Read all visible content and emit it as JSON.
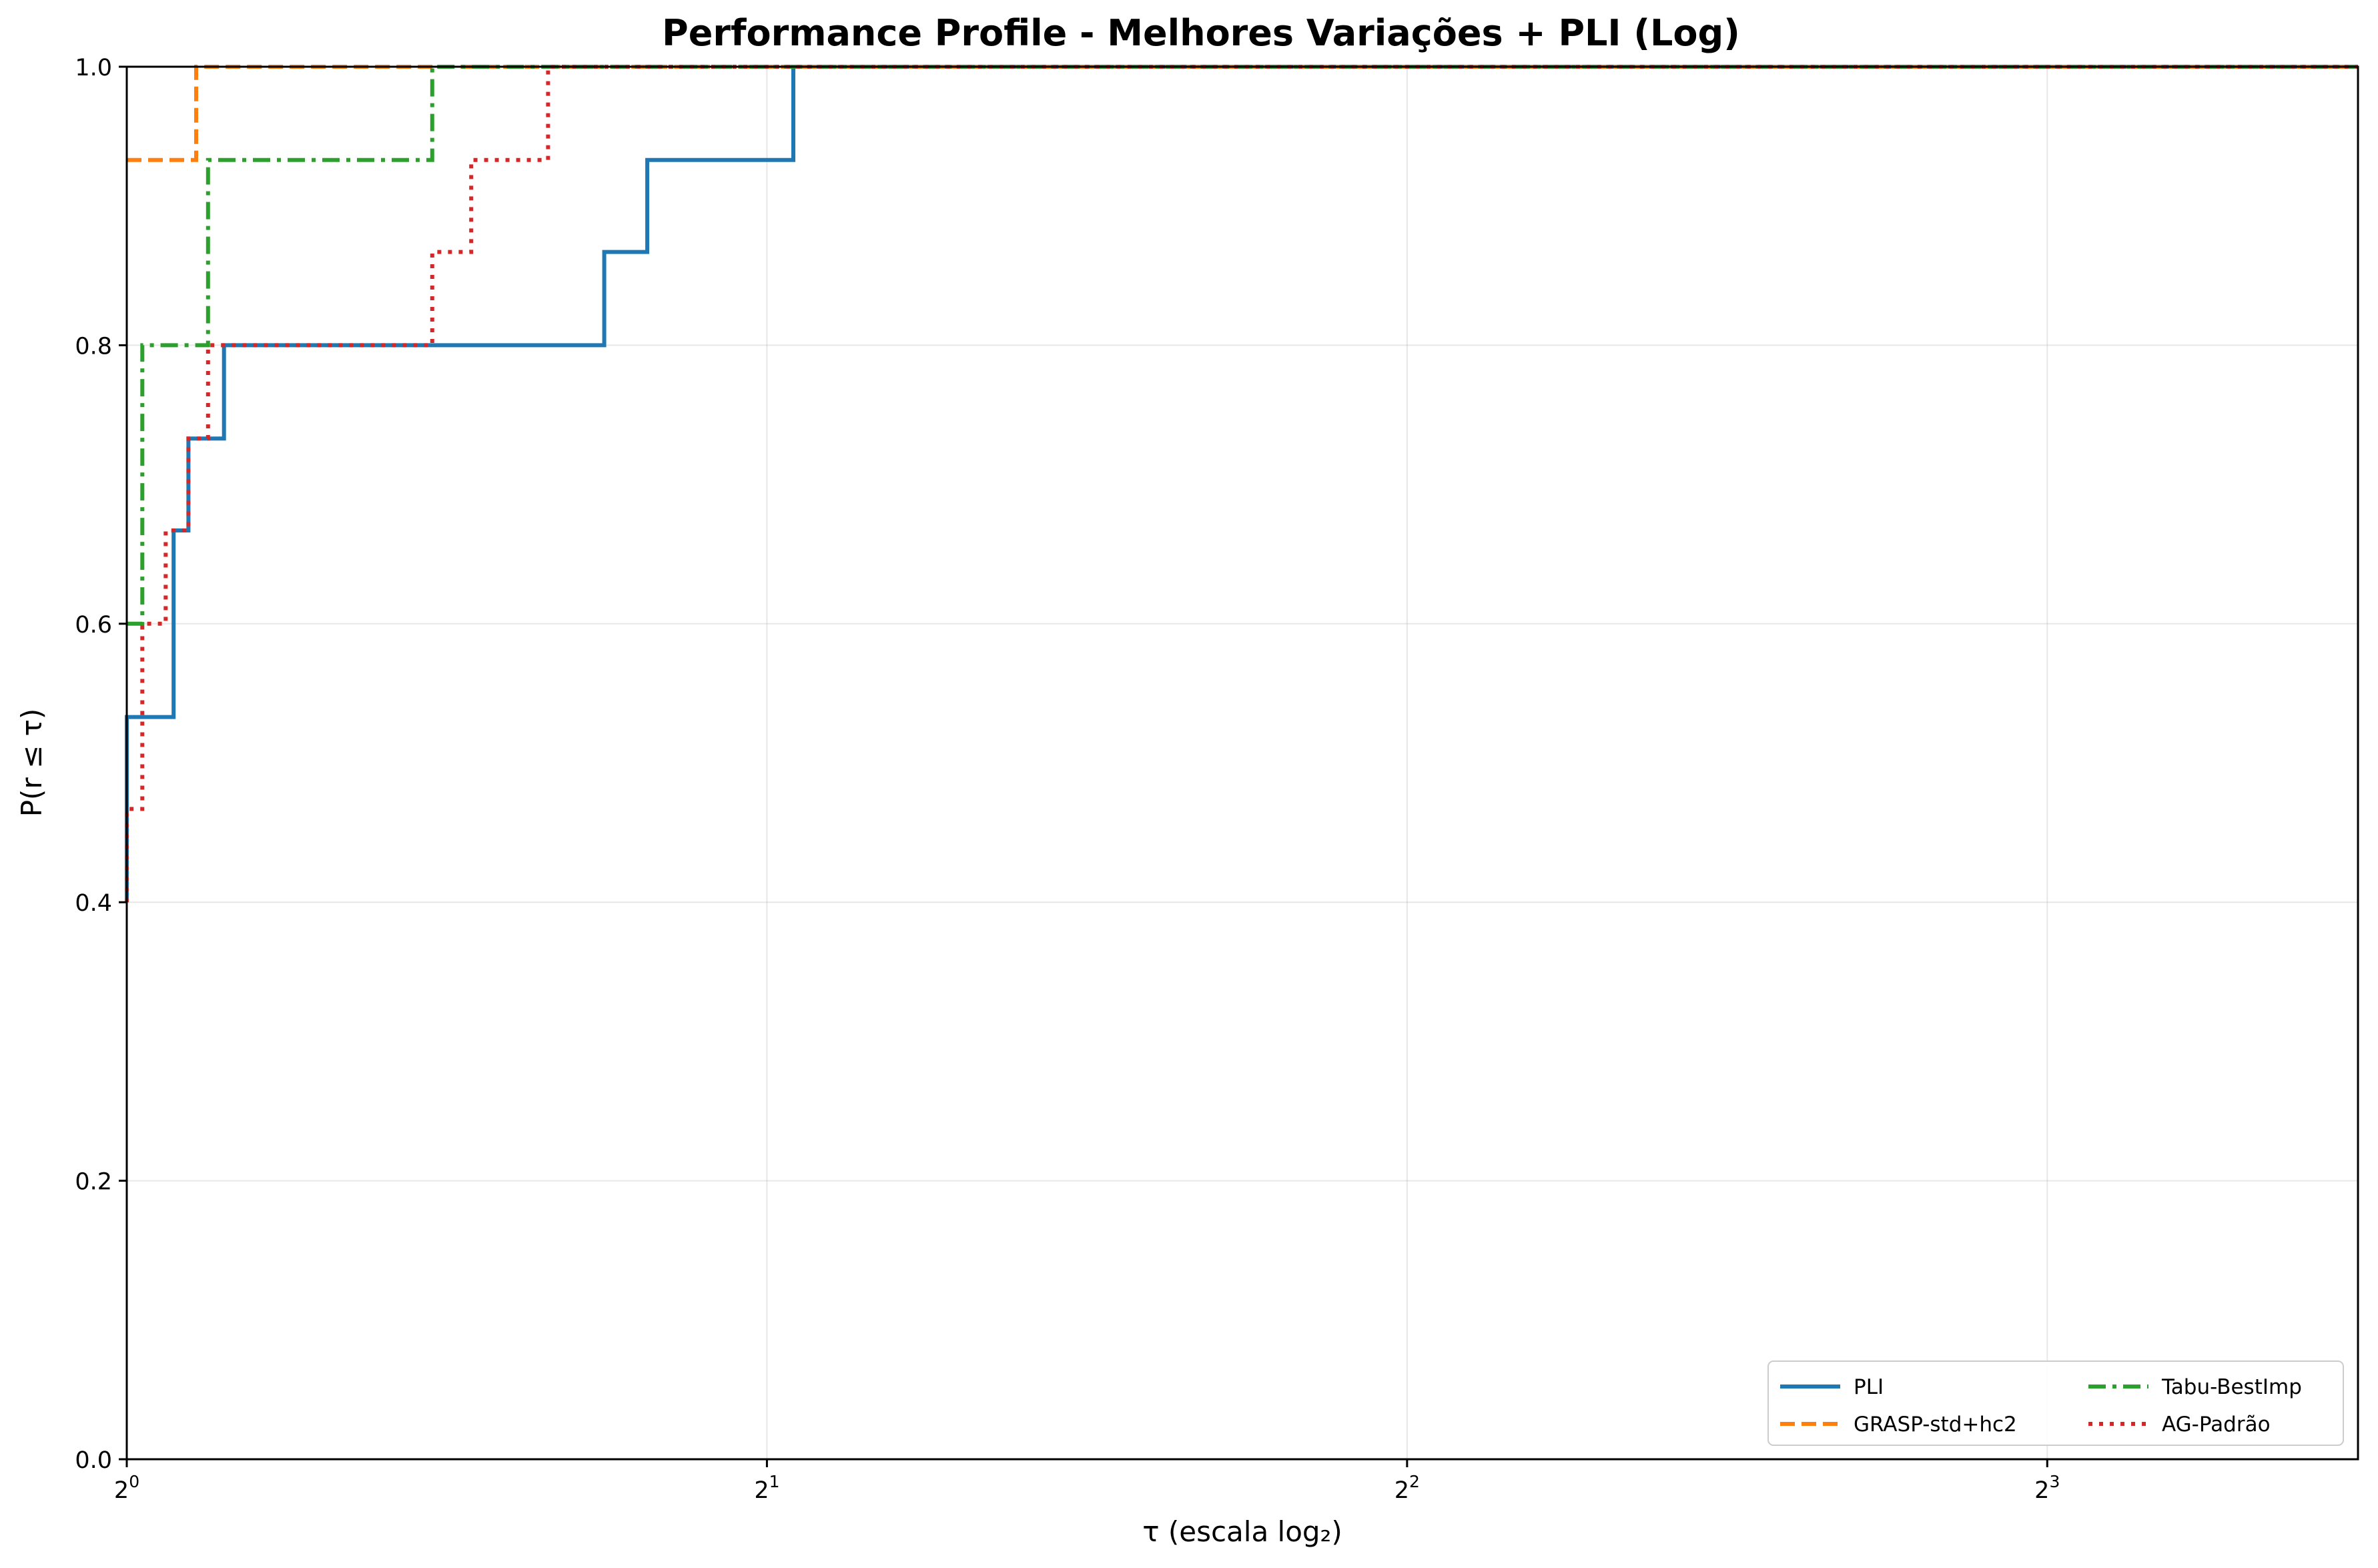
{
  "chart_data": {
    "type": "line",
    "step": "post",
    "title": "Performance Profile - Melhores Variações + PLI (Log)",
    "xlabel": "τ (escala log₂)",
    "ylabel": "P(r ≤ τ)",
    "x_scale": "log2",
    "xlim": [
      1.0,
      11.2
    ],
    "ylim": [
      0.0,
      1.0
    ],
    "x_ticks": [
      {
        "value": 1,
        "base": "2",
        "exp": "0"
      },
      {
        "value": 2,
        "base": "2",
        "exp": "1"
      },
      {
        "value": 4,
        "base": "2",
        "exp": "2"
      },
      {
        "value": 8,
        "base": "2",
        "exp": "3"
      }
    ],
    "y_ticks": [
      "0.0",
      "0.2",
      "0.4",
      "0.6",
      "0.8",
      "1.0"
    ],
    "grid": true,
    "legend": {
      "position": "lower right",
      "columns": 2
    },
    "series": [
      {
        "name": "PLI",
        "color": "#1f77b4",
        "dash": "solid",
        "points": [
          [
            1.0,
            0.4
          ],
          [
            1.0,
            0.533
          ],
          [
            1.052,
            0.667
          ],
          [
            1.069,
            0.733
          ],
          [
            1.111,
            0.8
          ],
          [
            1.677,
            0.867
          ],
          [
            1.757,
            0.933
          ],
          [
            2.058,
            1.0
          ],
          [
            11.2,
            1.0
          ]
        ]
      },
      {
        "name": "GRASP-std+hc2",
        "color": "#ff7f0e",
        "dash": "dashed",
        "points": [
          [
            1.0,
            0.933
          ],
          [
            1.078,
            1.0
          ],
          [
            11.2,
            1.0
          ]
        ]
      },
      {
        "name": "Tabu-BestImp",
        "color": "#2ca02c",
        "dash": "dashdot",
        "points": [
          [
            1.0,
            0.6
          ],
          [
            1.017,
            0.8
          ],
          [
            1.092,
            0.933
          ],
          [
            1.392,
            1.0
          ],
          [
            11.2,
            1.0
          ]
        ]
      },
      {
        "name": "AG-Padrão",
        "color": "#d62728",
        "dash": "dotted",
        "points": [
          [
            1.0,
            0.4
          ],
          [
            1.0,
            0.467
          ],
          [
            1.017,
            0.6
          ],
          [
            1.043,
            0.667
          ],
          [
            1.069,
            0.733
          ],
          [
            1.092,
            0.8
          ],
          [
            1.392,
            0.867
          ],
          [
            1.452,
            0.933
          ],
          [
            1.578,
            1.0
          ],
          [
            11.2,
            1.0
          ]
        ]
      }
    ]
  }
}
